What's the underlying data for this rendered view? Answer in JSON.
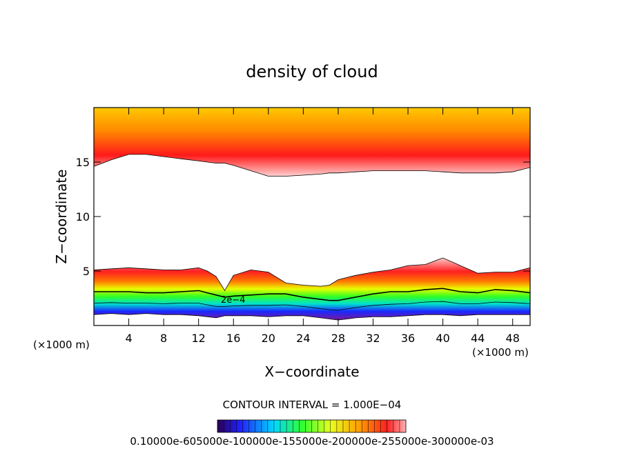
{
  "chart_data": {
    "type": "heatmap",
    "title": "density of cloud",
    "xlabel": "X−coordinate",
    "ylabel": "Z−coordinate",
    "x_unit_left": "(×1000 m)",
    "x_unit_right": "(×1000 m)",
    "xlim": [
      0,
      50
    ],
    "ylim": [
      0,
      20
    ],
    "x_ticks": [
      4,
      8,
      12,
      16,
      20,
      24,
      28,
      32,
      36,
      40,
      44,
      48
    ],
    "y_ticks": [
      5,
      10,
      15
    ],
    "contour_interval_text": "CONTOUR INTERVAL = 1.000E−04",
    "contour_label": "2e−4",
    "colorbar_labels_text": "0.10000e-605000e-100000e-155000e-200000e-255000e-300000e-03",
    "colorbar_min": 0.0001,
    "colorbar_max": 0.003,
    "x": [
      0,
      2,
      4,
      6,
      8,
      10,
      12,
      13,
      14,
      15,
      16,
      18,
      20,
      22,
      24,
      26,
      27,
      28,
      30,
      32,
      34,
      36,
      38,
      40,
      42,
      44,
      46,
      48,
      50
    ],
    "upper_cloud_base": [
      14.6,
      15.2,
      15.7,
      15.7,
      15.5,
      15.3,
      15.1,
      15.0,
      14.9,
      14.9,
      14.7,
      14.2,
      13.7,
      13.7,
      13.8,
      13.9,
      14.0,
      14.0,
      14.1,
      14.2,
      14.2,
      14.2,
      14.2,
      14.1,
      14.0,
      14.0,
      14.0,
      14.1,
      14.5
    ],
    "lower_cloud_top": [
      5.1,
      5.2,
      5.3,
      5.2,
      5.1,
      5.1,
      5.3,
      5.0,
      4.5,
      3.2,
      4.6,
      5.1,
      4.9,
      3.9,
      3.7,
      3.6,
      3.7,
      4.2,
      4.6,
      4.9,
      5.1,
      5.5,
      5.6,
      6.2,
      5.5,
      4.8,
      4.9,
      4.9,
      5.3
    ],
    "contour_2e-4": [
      3.1,
      3.1,
      3.1,
      3.0,
      3.0,
      3.1,
      3.2,
      3.0,
      2.8,
      2.6,
      2.7,
      2.8,
      2.9,
      2.9,
      2.6,
      2.4,
      2.3,
      2.3,
      2.6,
      2.9,
      3.1,
      3.1,
      3.3,
      3.4,
      3.1,
      3.0,
      3.3,
      3.2,
      3.0
    ],
    "lower_cloud_base": [
      1.0,
      1.1,
      1.0,
      1.1,
      1.0,
      1.0,
      0.9,
      0.8,
      0.7,
      0.9,
      0.9,
      0.9,
      0.8,
      0.9,
      0.9,
      0.7,
      0.6,
      0.5,
      0.7,
      0.8,
      0.8,
      0.9,
      1.0,
      1.0,
      0.9,
      1.0,
      1.0,
      1.0,
      1.0
    ]
  },
  "colors": {
    "top_band": "#ffcc00",
    "upper_core": "#ff1a1a",
    "pink_edge": "#ffd0d0",
    "green": "#33ff22",
    "blue": "#1a28ff",
    "purple": "#7a1a9a"
  }
}
